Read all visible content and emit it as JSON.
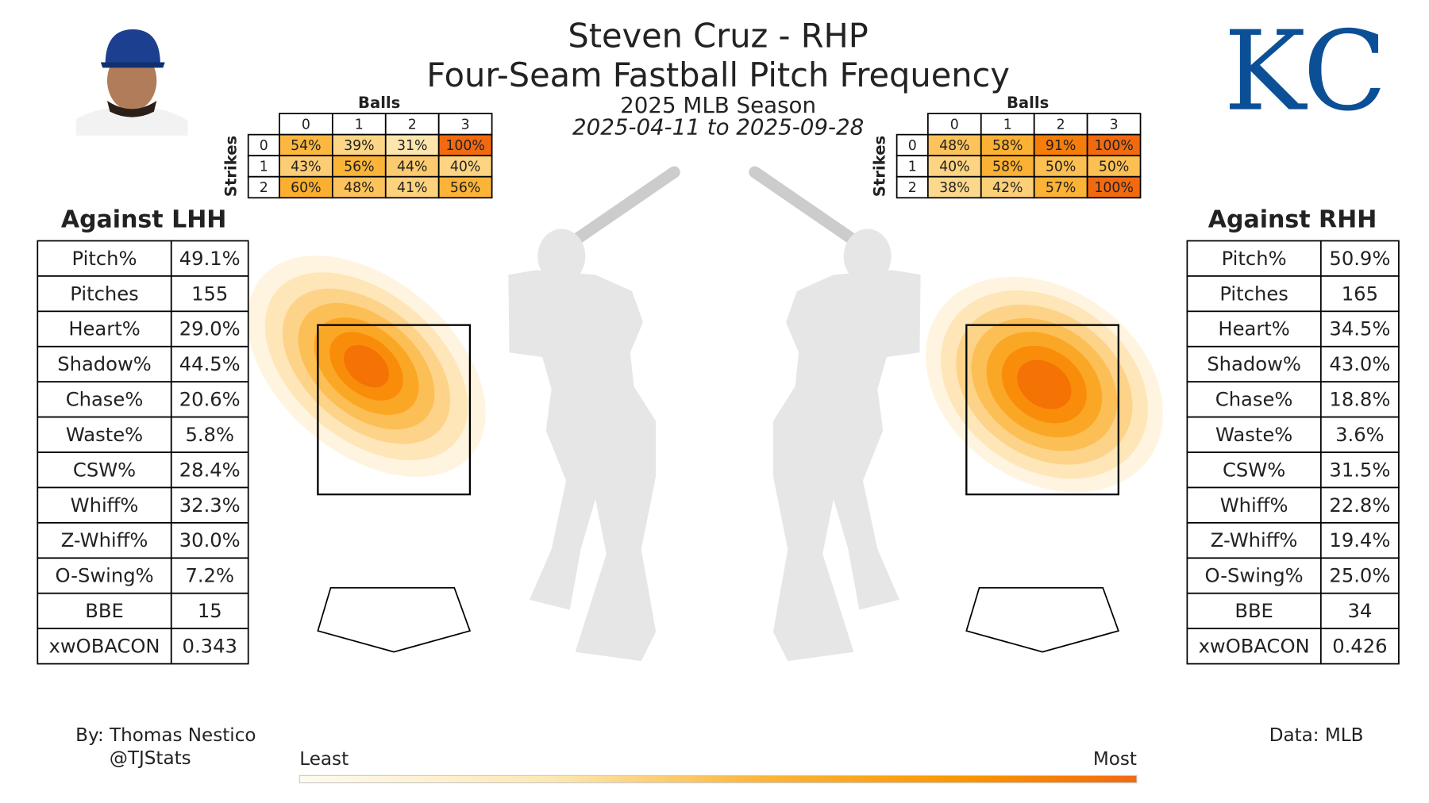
{
  "header": {
    "title": "Steven Cruz - RHP",
    "subtitle": "Four-Seam Fastball Pitch Frequency",
    "season": "2025 MLB Season",
    "dates": "2025-04-11 to 2025-09-28",
    "logo": "KC"
  },
  "count_tables": [
    {
      "balls_label": "Balls",
      "strikes_label": "Strikes",
      "balls": [
        0,
        1,
        2,
        3
      ],
      "strikes": [
        0,
        1,
        2
      ],
      "cells": [
        [
          {
            "value": 54,
            "label": "54%"
          },
          {
            "value": 39,
            "label": "39%"
          },
          {
            "value": 31,
            "label": "31%"
          },
          {
            "value": 100,
            "label": "100%"
          }
        ],
        [
          {
            "value": 43,
            "label": "43%"
          },
          {
            "value": 56,
            "label": "56%"
          },
          {
            "value": 44,
            "label": "44%"
          },
          {
            "value": 40,
            "label": "40%"
          }
        ],
        [
          {
            "value": 60,
            "label": "60%"
          },
          {
            "value": 48,
            "label": "48%"
          },
          {
            "value": 41,
            "label": "41%"
          },
          {
            "value": 56,
            "label": "56%"
          }
        ]
      ]
    },
    {
      "balls_label": "Balls",
      "strikes_label": "Strikes",
      "balls": [
        0,
        1,
        2,
        3
      ],
      "strikes": [
        0,
        1,
        2
      ],
      "cells": [
        [
          {
            "value": 48,
            "label": "48%"
          },
          {
            "value": 58,
            "label": "58%"
          },
          {
            "value": 91,
            "label": "91%"
          },
          {
            "value": 100,
            "label": "100%"
          }
        ],
        [
          {
            "value": 40,
            "label": "40%"
          },
          {
            "value": 58,
            "label": "58%"
          },
          {
            "value": 50,
            "label": "50%"
          },
          {
            "value": 50,
            "label": "50%"
          }
        ],
        [
          {
            "value": 38,
            "label": "38%"
          },
          {
            "value": 42,
            "label": "42%"
          },
          {
            "value": 57,
            "label": "57%"
          },
          {
            "value": 100,
            "label": "100%"
          }
        ]
      ]
    }
  ],
  "stat_tables": [
    {
      "title": "Against LHH",
      "rows": [
        [
          "Pitch%",
          "49.1%"
        ],
        [
          "Pitches",
          "155"
        ],
        [
          "Heart%",
          "29.0%"
        ],
        [
          "Shadow%",
          "44.5%"
        ],
        [
          "Chase%",
          "20.6%"
        ],
        [
          "Waste%",
          "5.8%"
        ],
        [
          "CSW%",
          "28.4%"
        ],
        [
          "Whiff%",
          "32.3%"
        ],
        [
          "Z-Whiff%",
          "30.0%"
        ],
        [
          "O-Swing%",
          "7.2%"
        ],
        [
          "BBE",
          "15"
        ],
        [
          "xwOBACON",
          "0.343"
        ]
      ]
    },
    {
      "title": "Against RHH",
      "rows": [
        [
          "Pitch%",
          "50.9%"
        ],
        [
          "Pitches",
          "165"
        ],
        [
          "Heart%",
          "34.5%"
        ],
        [
          "Shadow%",
          "43.0%"
        ],
        [
          "Chase%",
          "18.8%"
        ],
        [
          "Waste%",
          "3.6%"
        ],
        [
          "CSW%",
          "31.5%"
        ],
        [
          "Whiff%",
          "22.8%"
        ],
        [
          "Z-Whiff%",
          "19.4%"
        ],
        [
          "O-Swing%",
          "25.0%"
        ],
        [
          "BBE",
          "34"
        ],
        [
          "xwOBACON",
          "0.426"
        ]
      ]
    }
  ],
  "colorbar": {
    "low": "Least",
    "high": "Most"
  },
  "footer": {
    "credit": "By: Thomas Nestico",
    "handle": "@TJStats",
    "source": "Data: MLB"
  }
}
